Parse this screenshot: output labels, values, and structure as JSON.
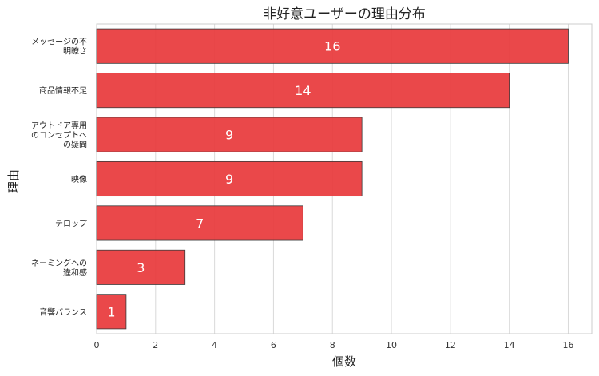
{
  "chart_data": {
    "type": "bar",
    "orientation": "horizontal",
    "title": "非好意ユーザーの理由分布",
    "xlabel": "個数",
    "ylabel": "理由",
    "categories": [
      [
        "メッセージの不",
        "明瞭さ"
      ],
      [
        "商品情報不足"
      ],
      [
        "アウトドア専用",
        "のコンセプトへ",
        "の疑問"
      ],
      [
        "映像"
      ],
      [
        "テロップ"
      ],
      [
        "ネーミングへの",
        "違和感"
      ],
      [
        "音響バランス"
      ]
    ],
    "values": [
      16,
      14,
      9,
      9,
      7,
      3,
      1
    ],
    "xlim": [
      0,
      16.8
    ],
    "xticks": [
      0,
      2,
      4,
      6,
      8,
      10,
      12,
      14,
      16
    ],
    "grid": "vertical",
    "bar_color": "#e8383b",
    "legend": "none"
  }
}
